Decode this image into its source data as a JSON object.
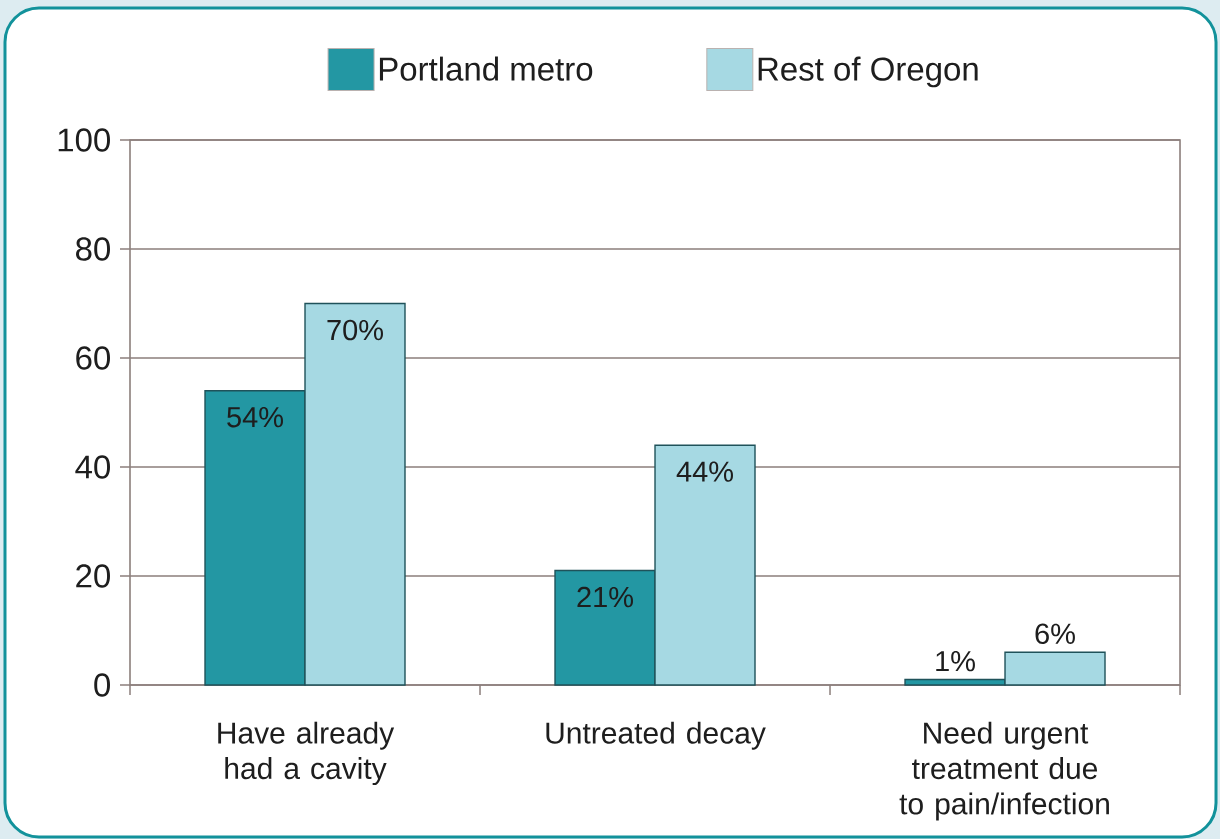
{
  "chart_data": {
    "type": "bar",
    "categories": [
      "Have already had a cavity",
      "Untreated decay",
      "Need urgent treatment due to pain/infection"
    ],
    "series": [
      {
        "name": "Portland metro",
        "color": "#2397a3",
        "values": [
          54,
          21,
          1
        ],
        "value_labels": [
          "54%",
          "21%",
          "1%"
        ]
      },
      {
        "name": "Rest of Oregon",
        "color": "#a6d9e3",
        "values": [
          70,
          44,
          6
        ],
        "value_labels": [
          "70%",
          "44%",
          "6%"
        ]
      }
    ],
    "ylim": [
      0,
      100
    ],
    "yticks": [
      0,
      20,
      40,
      60,
      80,
      100
    ],
    "grid": "y",
    "legend": "top"
  }
}
